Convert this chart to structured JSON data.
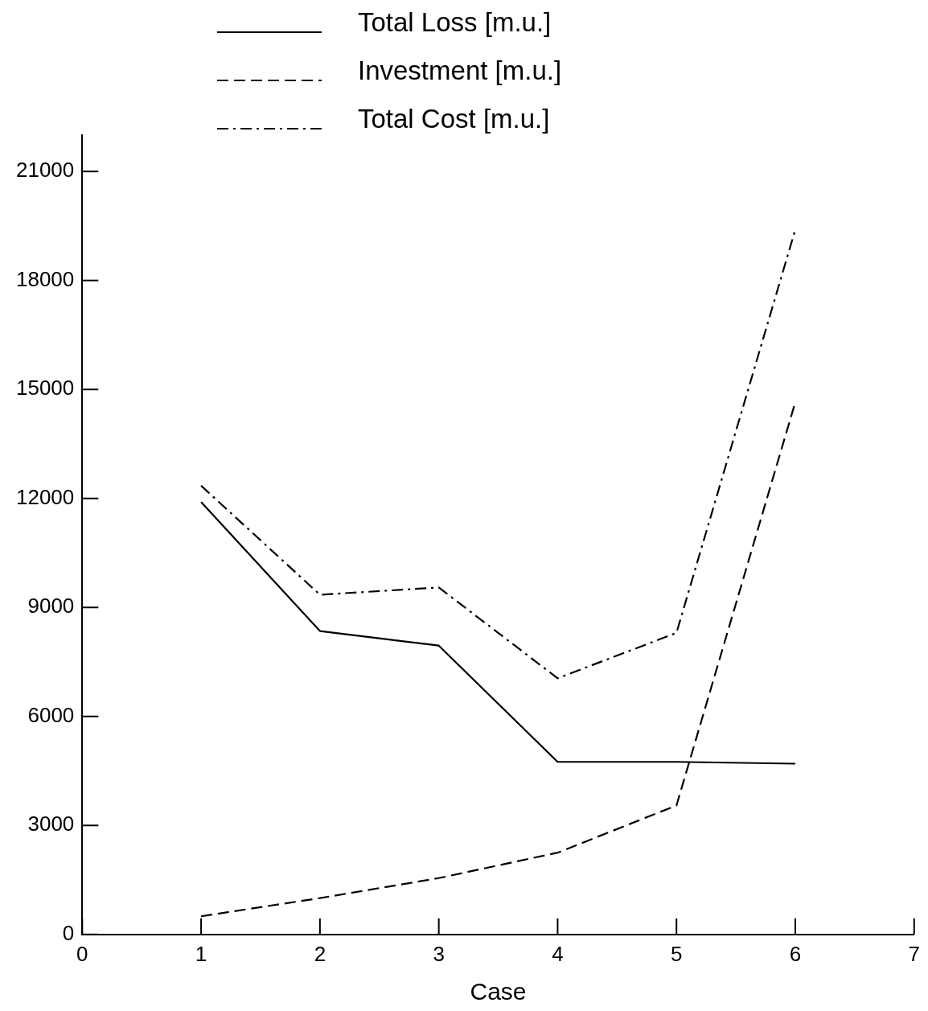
{
  "chart_data": {
    "type": "line",
    "xlabel": "Case",
    "x": [
      1,
      2,
      3,
      4,
      5,
      6
    ],
    "series": [
      {
        "name": "Total Loss [m.u.]",
        "color": "#000000",
        "line_style": "solid",
        "values": [
          11900,
          8350,
          7950,
          4750,
          4750,
          4700
        ]
      },
      {
        "name": "Investment [m.u.]",
        "color": "#000000",
        "line_style": "dashed",
        "values": [
          500,
          1000,
          1550,
          2250,
          3550,
          14650
        ]
      },
      {
        "name": "Total Cost [m.u.]",
        "color": "#000000",
        "line_style": "dashdot",
        "values": [
          12350,
          9350,
          9550,
          7050,
          8300,
          19400
        ]
      }
    ],
    "xlim": [
      0,
      7
    ],
    "xticks": [
      0,
      1,
      2,
      3,
      4,
      5,
      6,
      7
    ],
    "ylim": [
      0,
      22000
    ],
    "yticks": [
      0,
      3000,
      6000,
      9000,
      12000,
      15000,
      18000,
      21000
    ],
    "grid": false,
    "legend": "top",
    "marker": "none"
  }
}
